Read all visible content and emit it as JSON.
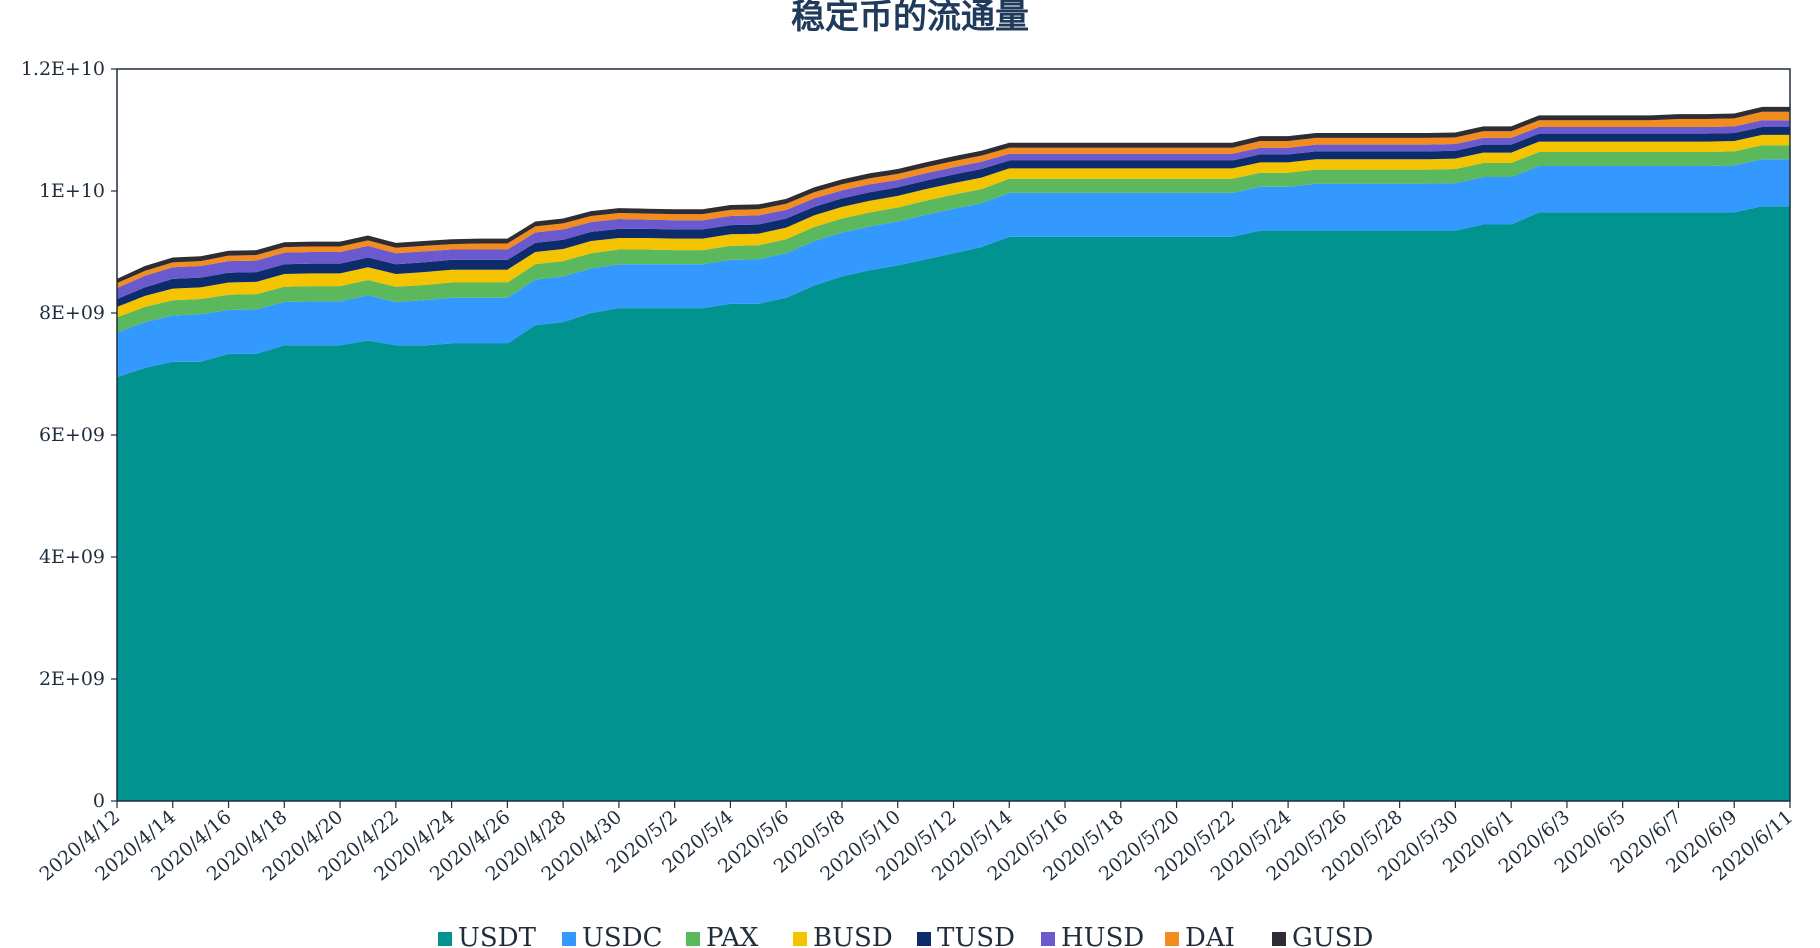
{
  "chart_data": {
    "type": "area",
    "stacked": true,
    "title": "稳定币的流通量",
    "xlabel": "",
    "ylabel": "",
    "ylim": [
      0,
      12000000000
    ],
    "yticks": [
      "0",
      "2E+09",
      "4E+09",
      "6E+09",
      "8E+09",
      "1E+10",
      "1.2E+10"
    ],
    "ytick_values": [
      0,
      2000000000,
      4000000000,
      6000000000,
      8000000000,
      10000000000,
      12000000000
    ],
    "x": [
      "2020/4/12",
      "2020/4/13",
      "2020/4/14",
      "2020/4/15",
      "2020/4/16",
      "2020/4/17",
      "2020/4/18",
      "2020/4/19",
      "2020/4/20",
      "2020/4/21",
      "2020/4/22",
      "2020/4/23",
      "2020/4/24",
      "2020/4/25",
      "2020/4/26",
      "2020/4/27",
      "2020/4/28",
      "2020/4/29",
      "2020/4/30",
      "2020/5/1",
      "2020/5/2",
      "2020/5/3",
      "2020/5/4",
      "2020/5/5",
      "2020/5/6",
      "2020/5/7",
      "2020/5/8",
      "2020/5/9",
      "2020/5/10",
      "2020/5/11",
      "2020/5/12",
      "2020/5/13",
      "2020/5/14",
      "2020/5/15",
      "2020/5/16",
      "2020/5/17",
      "2020/5/18",
      "2020/5/19",
      "2020/5/20",
      "2020/5/21",
      "2020/5/22",
      "2020/5/23",
      "2020/5/24",
      "2020/5/25",
      "2020/5/26",
      "2020/5/27",
      "2020/5/28",
      "2020/5/29",
      "2020/5/30",
      "2020/5/31",
      "2020/6/1",
      "2020/6/2",
      "2020/6/3",
      "2020/6/4",
      "2020/6/5",
      "2020/6/6",
      "2020/6/7",
      "2020/6/8",
      "2020/6/9",
      "2020/6/10",
      "2020/6/11"
    ],
    "xticks": [
      "2020/4/12",
      "2020/4/14",
      "2020/4/16",
      "2020/4/18",
      "2020/4/20",
      "2020/4/22",
      "2020/4/24",
      "2020/4/26",
      "2020/4/28",
      "2020/4/30",
      "2020/5/2",
      "2020/5/4",
      "2020/5/6",
      "2020/5/8",
      "2020/5/10",
      "2020/5/12",
      "2020/5/14",
      "2020/5/16",
      "2020/5/18",
      "2020/5/20",
      "2020/5/22",
      "2020/5/24",
      "2020/5/26",
      "2020/5/28",
      "2020/5/30",
      "2020/6/1",
      "2020/6/3",
      "2020/6/5",
      "2020/6/7",
      "2020/6/9",
      "2020/6/11"
    ],
    "grid": false,
    "legend_position": "bottom",
    "series": [
      {
        "name": "USDT",
        "color": "#009390",
        "values": [
          6950000000.0,
          7100000000.0,
          7200000000.0,
          7200000000.0,
          7330000000.0,
          7330000000.0,
          7470000000.0,
          7470000000.0,
          7470000000.0,
          7550000000.0,
          7470000000.0,
          7470000000.0,
          7500000000.0,
          7500000000.0,
          7500000000.0,
          7800000000.0,
          7850000000.0,
          8000000000.0,
          8080000000.0,
          8080000000.0,
          8080000000.0,
          8080000000.0,
          8150000000.0,
          8150000000.0,
          8250000000.0,
          8450000000.0,
          8600000000.0,
          8700000000.0,
          8780000000.0,
          8880000000.0,
          8980000000.0,
          9080000000.0,
          9250000000.0,
          9250000000.0,
          9250000000.0,
          9250000000.0,
          9250000000.0,
          9250000000.0,
          9250000000.0,
          9250000000.0,
          9250000000.0,
          9350000000.0,
          9350000000.0,
          9350000000.0,
          9350000000.0,
          9350000000.0,
          9350000000.0,
          9350000000.0,
          9350000000.0,
          9450000000.0,
          9450000000.0,
          9650000000.0,
          9650000000.0,
          9650000000.0,
          9650000000.0,
          9650000000.0,
          9650000000.0,
          9650000000.0,
          9650000000.0,
          9750000000.0,
          9750000000.0
        ]
      },
      {
        "name": "USDC",
        "color": "#3399ff",
        "values": [
          730000000.0,
          750000000.0,
          760000000.0,
          780000000.0,
          720000000.0,
          730000000.0,
          710000000.0,
          720000000.0,
          720000000.0,
          740000000.0,
          710000000.0,
          740000000.0,
          750000000.0,
          750000000.0,
          750000000.0,
          750000000.0,
          750000000.0,
          730000000.0,
          720000000.0,
          720000000.0,
          720000000.0,
          720000000.0,
          720000000.0,
          730000000.0,
          730000000.0,
          730000000.0,
          720000000.0,
          720000000.0,
          720000000.0,
          730000000.0,
          730000000.0,
          720000000.0,
          720000000.0,
          720000000.0,
          720000000.0,
          720000000.0,
          720000000.0,
          720000000.0,
          720000000.0,
          720000000.0,
          720000000.0,
          720000000.0,
          720000000.0,
          770000000.0,
          770000000.0,
          770000000.0,
          770000000.0,
          770000000.0,
          780000000.0,
          780000000.0,
          780000000.0,
          760000000.0,
          760000000.0,
          760000000.0,
          760000000.0,
          760000000.0,
          760000000.0,
          760000000.0,
          770000000.0,
          770000000.0,
          770000000.0
        ]
      },
      {
        "name": "PAX",
        "color": "#5cb85c",
        "values": [
          250000000.0,
          250000000.0,
          250000000.0,
          250000000.0,
          250000000.0,
          250000000.0,
          250000000.0,
          250000000.0,
          250000000.0,
          250000000.0,
          250000000.0,
          250000000.0,
          250000000.0,
          250000000.0,
          250000000.0,
          250000000.0,
          250000000.0,
          250000000.0,
          240000000.0,
          240000000.0,
          230000000.0,
          230000000.0,
          230000000.0,
          230000000.0,
          230000000.0,
          230000000.0,
          230000000.0,
          230000000.0,
          230000000.0,
          230000000.0,
          230000000.0,
          230000000.0,
          230000000.0,
          230000000.0,
          230000000.0,
          230000000.0,
          230000000.0,
          230000000.0,
          230000000.0,
          230000000.0,
          230000000.0,
          230000000.0,
          230000000.0,
          230000000.0,
          230000000.0,
          230000000.0,
          230000000.0,
          230000000.0,
          230000000.0,
          230000000.0,
          230000000.0,
          230000000.0,
          230000000.0,
          230000000.0,
          230000000.0,
          230000000.0,
          230000000.0,
          230000000.0,
          230000000.0,
          230000000.0,
          230000000.0
        ]
      },
      {
        "name": "BUSD",
        "color": "#f5c400",
        "values": [
          170000000.0,
          180000000.0,
          190000000.0,
          190000000.0,
          200000000.0,
          200000000.0,
          210000000.0,
          210000000.0,
          210000000.0,
          210000000.0,
          210000000.0,
          210000000.0,
          210000000.0,
          210000000.0,
          210000000.0,
          200000000.0,
          200000000.0,
          200000000.0,
          190000000.0,
          190000000.0,
          190000000.0,
          190000000.0,
          190000000.0,
          190000000.0,
          190000000.0,
          190000000.0,
          190000000.0,
          190000000.0,
          190000000.0,
          190000000.0,
          190000000.0,
          190000000.0,
          170000000.0,
          170000000.0,
          170000000.0,
          170000000.0,
          170000000.0,
          170000000.0,
          170000000.0,
          170000000.0,
          170000000.0,
          170000000.0,
          170000000.0,
          170000000.0,
          170000000.0,
          170000000.0,
          170000000.0,
          170000000.0,
          170000000.0,
          170000000.0,
          170000000.0,
          170000000.0,
          170000000.0,
          170000000.0,
          170000000.0,
          170000000.0,
          170000000.0,
          170000000.0,
          170000000.0,
          170000000.0,
          170000000.0
        ]
      },
      {
        "name": "TUSD",
        "color": "#0d2c6b",
        "values": [
          130000000.0,
          140000000.0,
          160000000.0,
          160000000.0,
          160000000.0,
          160000000.0,
          160000000.0,
          160000000.0,
          160000000.0,
          160000000.0,
          160000000.0,
          160000000.0,
          160000000.0,
          160000000.0,
          160000000.0,
          150000000.0,
          150000000.0,
          150000000.0,
          150000000.0,
          150000000.0,
          150000000.0,
          150000000.0,
          150000000.0,
          150000000.0,
          150000000.0,
          140000000.0,
          140000000.0,
          140000000.0,
          140000000.0,
          140000000.0,
          140000000.0,
          140000000.0,
          130000000.0,
          130000000.0,
          130000000.0,
          130000000.0,
          130000000.0,
          130000000.0,
          130000000.0,
          130000000.0,
          130000000.0,
          130000000.0,
          130000000.0,
          130000000.0,
          130000000.0,
          130000000.0,
          130000000.0,
          130000000.0,
          130000000.0,
          130000000.0,
          130000000.0,
          130000000.0,
          130000000.0,
          130000000.0,
          130000000.0,
          130000000.0,
          130000000.0,
          130000000.0,
          130000000.0,
          130000000.0,
          130000000.0
        ]
      },
      {
        "name": "HUSD",
        "color": "#6a5acd",
        "values": [
          180000000.0,
          190000000.0,
          190000000.0,
          190000000.0,
          190000000.0,
          190000000.0,
          190000000.0,
          190000000.0,
          190000000.0,
          190000000.0,
          180000000.0,
          180000000.0,
          170000000.0,
          170000000.0,
          170000000.0,
          170000000.0,
          170000000.0,
          160000000.0,
          160000000.0,
          150000000.0,
          150000000.0,
          150000000.0,
          150000000.0,
          150000000.0,
          140000000.0,
          140000000.0,
          130000000.0,
          130000000.0,
          120000000.0,
          120000000.0,
          120000000.0,
          120000000.0,
          110000000.0,
          110000000.0,
          110000000.0,
          110000000.0,
          110000000.0,
          110000000.0,
          110000000.0,
          110000000.0,
          110000000.0,
          110000000.0,
          110000000.0,
          110000000.0,
          110000000.0,
          110000000.0,
          110000000.0,
          110000000.0,
          110000000.0,
          110000000.0,
          110000000.0,
          110000000.0,
          110000000.0,
          110000000.0,
          110000000.0,
          110000000.0,
          110000000.0,
          110000000.0,
          110000000.0,
          110000000.0,
          110000000.0
        ]
      },
      {
        "name": "DAI",
        "color": "#f28c1e",
        "values": [
          80000000.0,
          80000000.0,
          80000000.0,
          80000000.0,
          90000000.0,
          90000000.0,
          90000000.0,
          90000000.0,
          90000000.0,
          90000000.0,
          90000000.0,
          90000000.0,
          90000000.0,
          100000000.0,
          100000000.0,
          100000000.0,
          100000000.0,
          100000000.0,
          100000000.0,
          100000000.0,
          100000000.0,
          100000000.0,
          100000000.0,
          100000000.0,
          100000000.0,
          100000000.0,
          100000000.0,
          100000000.0,
          100000000.0,
          100000000.0,
          100000000.0,
          100000000.0,
          100000000.0,
          100000000.0,
          100000000.0,
          100000000.0,
          100000000.0,
          100000000.0,
          100000000.0,
          100000000.0,
          100000000.0,
          110000000.0,
          110000000.0,
          110000000.0,
          110000000.0,
          110000000.0,
          110000000.0,
          110000000.0,
          110000000.0,
          110000000.0,
          110000000.0,
          110000000.0,
          110000000.0,
          110000000.0,
          110000000.0,
          110000000.0,
          130000000.0,
          130000000.0,
          130000000.0,
          140000000.0,
          140000000.0
        ]
      },
      {
        "name": "GUSD",
        "color": "#2d2d33",
        "values": [
          70000000.0,
          80000000.0,
          80000000.0,
          80000000.0,
          80000000.0,
          80000000.0,
          80000000.0,
          80000000.0,
          80000000.0,
          80000000.0,
          80000000.0,
          80000000.0,
          80000000.0,
          80000000.0,
          80000000.0,
          80000000.0,
          80000000.0,
          80000000.0,
          80000000.0,
          80000000.0,
          80000000.0,
          80000000.0,
          80000000.0,
          80000000.0,
          80000000.0,
          80000000.0,
          80000000.0,
          80000000.0,
          80000000.0,
          80000000.0,
          80000000.0,
          80000000.0,
          80000000.0,
          80000000.0,
          80000000.0,
          80000000.0,
          80000000.0,
          80000000.0,
          80000000.0,
          80000000.0,
          80000000.0,
          80000000.0,
          80000000.0,
          80000000.0,
          80000000.0,
          80000000.0,
          80000000.0,
          80000000.0,
          80000000.0,
          80000000.0,
          80000000.0,
          80000000.0,
          80000000.0,
          80000000.0,
          80000000.0,
          80000000.0,
          80000000.0,
          80000000.0,
          80000000.0,
          80000000.0,
          80000000.0
        ]
      }
    ]
  }
}
